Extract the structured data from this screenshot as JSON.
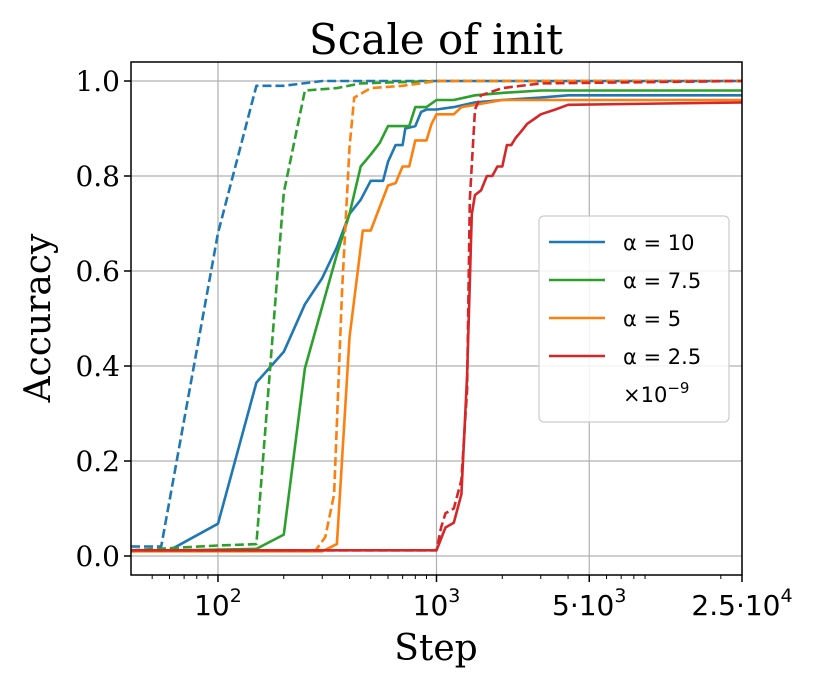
{
  "chart_data": {
    "type": "line",
    "title": "Scale of init",
    "xlabel": "Step",
    "ylabel": "Accuracy",
    "xscale": "log",
    "xlim": [
      40,
      25000
    ],
    "ylim": [
      -0.04,
      1.04
    ],
    "grid": true,
    "legend_position": "center-right",
    "x_ticks": [
      {
        "value": 100,
        "label": "10",
        "sup": "2"
      },
      {
        "value": 1000,
        "label": "10",
        "sup": "3"
      },
      {
        "value": 5000,
        "label": "5·10",
        "sup": "3"
      },
      {
        "value": 25000,
        "label": "2.5·10",
        "sup": "4"
      }
    ],
    "y_ticks": [
      {
        "value": 0.0,
        "label": "0.0"
      },
      {
        "value": 0.2,
        "label": "0.2"
      },
      {
        "value": 0.4,
        "label": "0.4"
      },
      {
        "value": 0.6,
        "label": "0.6"
      },
      {
        "value": 0.8,
        "label": "0.8"
      },
      {
        "value": 1.0,
        "label": "1.0"
      }
    ],
    "legend": {
      "entries": [
        {
          "label": "α = 10",
          "color": "#1f77b4"
        },
        {
          "label": "α = 7.5",
          "color": "#2ca02c"
        },
        {
          "label": "α = 5",
          "color": "#ff7f0e"
        },
        {
          "label": "α = 2.5",
          "color": "#d62728"
        }
      ],
      "note": "×10",
      "note_sup": "−9"
    },
    "series": [
      {
        "name": "α = 10",
        "style": "solid",
        "color": "#1f77b4",
        "points": [
          [
            40,
            0.012
          ],
          [
            60,
            0.012
          ],
          [
            100,
            0.068
          ],
          [
            150,
            0.365
          ],
          [
            200,
            0.43
          ],
          [
            250,
            0.53
          ],
          [
            300,
            0.585
          ],
          [
            350,
            0.65
          ],
          [
            400,
            0.72
          ],
          [
            450,
            0.75
          ],
          [
            500,
            0.79
          ],
          [
            570,
            0.79
          ],
          [
            600,
            0.83
          ],
          [
            650,
            0.865
          ],
          [
            700,
            0.865
          ],
          [
            720,
            0.9
          ],
          [
            800,
            0.905
          ],
          [
            850,
            0.935
          ],
          [
            900,
            0.94
          ],
          [
            1000,
            0.94
          ],
          [
            1200,
            0.945
          ],
          [
            1500,
            0.955
          ],
          [
            2000,
            0.96
          ],
          [
            3000,
            0.965
          ],
          [
            4000,
            0.97
          ],
          [
            25000,
            0.97
          ]
        ]
      },
      {
        "name": "α = 10",
        "style": "dashed",
        "color": "#1f77b4",
        "points": [
          [
            40,
            0.02
          ],
          [
            55,
            0.02
          ],
          [
            100,
            0.68
          ],
          [
            150,
            0.99
          ],
          [
            200,
            0.99
          ],
          [
            300,
            1.0
          ],
          [
            25000,
            1.0
          ]
        ]
      },
      {
        "name": "α = 7.5",
        "style": "solid",
        "color": "#2ca02c",
        "points": [
          [
            40,
            0.01
          ],
          [
            150,
            0.015
          ],
          [
            200,
            0.045
          ],
          [
            250,
            0.395
          ],
          [
            300,
            0.525
          ],
          [
            350,
            0.635
          ],
          [
            400,
            0.72
          ],
          [
            450,
            0.82
          ],
          [
            500,
            0.845
          ],
          [
            550,
            0.87
          ],
          [
            600,
            0.905
          ],
          [
            750,
            0.905
          ],
          [
            800,
            0.945
          ],
          [
            900,
            0.945
          ],
          [
            1000,
            0.96
          ],
          [
            1200,
            0.96
          ],
          [
            1500,
            0.97
          ],
          [
            2000,
            0.975
          ],
          [
            3000,
            0.98
          ],
          [
            25000,
            0.98
          ]
        ]
      },
      {
        "name": "α = 7.5",
        "style": "dashed",
        "color": "#2ca02c",
        "points": [
          [
            40,
            0.012
          ],
          [
            100,
            0.022
          ],
          [
            150,
            0.025
          ],
          [
            200,
            0.765
          ],
          [
            250,
            0.98
          ],
          [
            350,
            0.985
          ],
          [
            450,
            0.995
          ],
          [
            1000,
            1.0
          ],
          [
            25000,
            1.0
          ]
        ]
      },
      {
        "name": "α = 5",
        "style": "solid",
        "color": "#ff7f0e",
        "points": [
          [
            40,
            0.01
          ],
          [
            300,
            0.01
          ],
          [
            350,
            0.025
          ],
          [
            400,
            0.46
          ],
          [
            460,
            0.685
          ],
          [
            500,
            0.685
          ],
          [
            550,
            0.735
          ],
          [
            600,
            0.78
          ],
          [
            650,
            0.785
          ],
          [
            700,
            0.82
          ],
          [
            750,
            0.82
          ],
          [
            800,
            0.875
          ],
          [
            900,
            0.875
          ],
          [
            950,
            0.91
          ],
          [
            1000,
            0.93
          ],
          [
            1200,
            0.93
          ],
          [
            1300,
            0.945
          ],
          [
            1500,
            0.95
          ],
          [
            2000,
            0.96
          ],
          [
            25000,
            0.96
          ]
        ]
      },
      {
        "name": "α = 5",
        "style": "dashed",
        "color": "#ff7f0e",
        "points": [
          [
            40,
            0.01
          ],
          [
            280,
            0.012
          ],
          [
            310,
            0.04
          ],
          [
            340,
            0.13
          ],
          [
            370,
            0.56
          ],
          [
            400,
            0.86
          ],
          [
            420,
            0.965
          ],
          [
            500,
            0.985
          ],
          [
            700,
            0.99
          ],
          [
            1000,
            1.0
          ],
          [
            25000,
            1.0
          ]
        ]
      },
      {
        "name": "α = 2.5",
        "style": "solid",
        "color": "#d62728",
        "points": [
          [
            40,
            0.012
          ],
          [
            1000,
            0.012
          ],
          [
            1100,
            0.06
          ],
          [
            1200,
            0.07
          ],
          [
            1300,
            0.13
          ],
          [
            1380,
            0.38
          ],
          [
            1450,
            0.72
          ],
          [
            1500,
            0.76
          ],
          [
            1600,
            0.77
          ],
          [
            1700,
            0.8
          ],
          [
            1800,
            0.8
          ],
          [
            1900,
            0.82
          ],
          [
            2000,
            0.82
          ],
          [
            2100,
            0.865
          ],
          [
            2200,
            0.865
          ],
          [
            2300,
            0.88
          ],
          [
            2400,
            0.89
          ],
          [
            2500,
            0.9
          ],
          [
            2600,
            0.91
          ],
          [
            2800,
            0.92
          ],
          [
            3000,
            0.93
          ],
          [
            3500,
            0.94
          ],
          [
            4000,
            0.95
          ],
          [
            25000,
            0.955
          ]
        ]
      },
      {
        "name": "α = 2.5",
        "style": "dashed",
        "color": "#d62728",
        "points": [
          [
            40,
            0.012
          ],
          [
            1000,
            0.012
          ],
          [
            1050,
            0.06
          ],
          [
            1100,
            0.09
          ],
          [
            1200,
            0.1
          ],
          [
            1300,
            0.16
          ],
          [
            1380,
            0.35
          ],
          [
            1420,
            0.75
          ],
          [
            1500,
            0.94
          ],
          [
            1600,
            0.97
          ],
          [
            2000,
            0.985
          ],
          [
            3000,
            0.995
          ],
          [
            25000,
            1.0
          ]
        ]
      }
    ]
  }
}
